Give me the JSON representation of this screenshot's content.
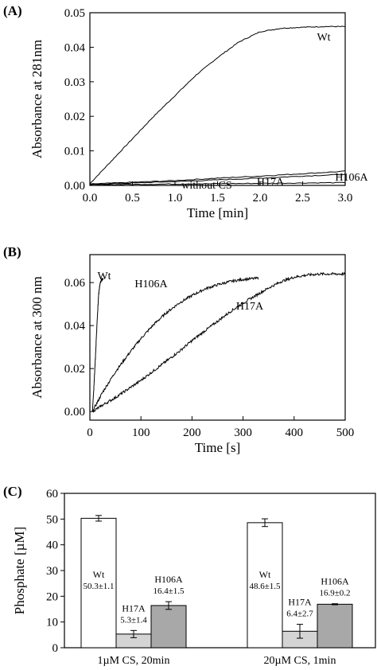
{
  "chart_data": [
    {
      "panel": "(A)",
      "type": "line",
      "xlabel": "Time [min]",
      "ylabel": "Absorbance at 281nm",
      "xlim": [
        0,
        3
      ],
      "ylim": [
        0,
        0.05
      ],
      "xticks": [
        0.0,
        0.5,
        1.0,
        1.5,
        2.0,
        2.5,
        3.0
      ],
      "xtick_labels": [
        "0.0",
        "0.5",
        "1.0",
        "1.5",
        "2.0",
        "2.5",
        "3.0"
      ],
      "yticks": [
        0,
        0.01,
        0.02,
        0.03,
        0.04,
        0.05
      ],
      "ytick_labels": [
        "0.00",
        "0.01",
        "0.02",
        "0.03",
        "0.04",
        "0.05"
      ],
      "series": [
        {
          "name": "Wt",
          "x": [
            0,
            0.25,
            0.5,
            0.75,
            1.0,
            1.25,
            1.5,
            1.75,
            2.0,
            2.25,
            2.5,
            2.75,
            3.0
          ],
          "y": [
            0.0005,
            0.007,
            0.0135,
            0.02,
            0.026,
            0.032,
            0.037,
            0.0415,
            0.0445,
            0.0455,
            0.0458,
            0.046,
            0.046
          ]
        },
        {
          "name": "H106A",
          "x": [
            0,
            0.5,
            1.0,
            1.5,
            2.0,
            2.5,
            3.0
          ],
          "y": [
            0.0004,
            0.0009,
            0.0014,
            0.0021,
            0.0027,
            0.0034,
            0.0041
          ]
        },
        {
          "name": "H17A",
          "x": [
            0,
            0.5,
            1.0,
            1.5,
            2.0,
            2.5,
            3.0
          ],
          "y": [
            0.0003,
            0.0007,
            0.0011,
            0.0016,
            0.0021,
            0.0027,
            0.0032
          ]
        },
        {
          "name": "without CS",
          "x": [
            0,
            0.5,
            1.0,
            1.5,
            2.0,
            2.5,
            3.0
          ],
          "y": [
            0.0002,
            0.0003,
            0.0004,
            0.0005,
            0.0006,
            0.0007,
            0.0008
          ]
        }
      ]
    },
    {
      "panel": "(B)",
      "type": "line",
      "xlabel": "Time [s]",
      "ylabel": "Absorbance at 300 nm",
      "xlim": [
        0,
        500
      ],
      "ylim": [
        -0.004,
        0.073
      ],
      "xticks": [
        0,
        100,
        200,
        300,
        400,
        500
      ],
      "xtick_labels": [
        "0",
        "100",
        "200",
        "300",
        "400",
        "500"
      ],
      "yticks": [
        0,
        0.02,
        0.04,
        0.06
      ],
      "ytick_labels": [
        "0.00",
        "0.02",
        "0.04",
        "0.06"
      ],
      "series": [
        {
          "name": "Wt",
          "x": [
            5,
            8,
            11,
            14,
            17,
            20,
            23,
            26
          ],
          "y": [
            0.0,
            0.012,
            0.026,
            0.041,
            0.054,
            0.06,
            0.0615,
            0.0615
          ]
        },
        {
          "name": "H106A",
          "x": [
            5,
            25,
            50,
            75,
            100,
            125,
            150,
            175,
            200,
            225,
            250,
            275,
            300,
            330
          ],
          "y": [
            0.0,
            0.009,
            0.0185,
            0.0265,
            0.034,
            0.0405,
            0.046,
            0.0505,
            0.054,
            0.057,
            0.059,
            0.0605,
            0.0615,
            0.062
          ]
        },
        {
          "name": "H17A",
          "x": [
            5,
            25,
            50,
            75,
            100,
            125,
            150,
            175,
            200,
            225,
            250,
            275,
            300,
            325,
            350,
            375,
            400,
            425,
            450,
            475,
            500
          ],
          "y": [
            0.0,
            0.003,
            0.0065,
            0.0105,
            0.0145,
            0.019,
            0.0235,
            0.028,
            0.033,
            0.0375,
            0.042,
            0.0465,
            0.0505,
            0.054,
            0.0575,
            0.0605,
            0.0625,
            0.0635,
            0.064,
            0.064,
            0.064
          ]
        }
      ]
    },
    {
      "panel": "(C)",
      "type": "bar",
      "ylabel": "Phosphate [µM]",
      "ylim": [
        0,
        60
      ],
      "yticks": [
        0,
        10,
        20,
        30,
        40,
        50,
        60
      ],
      "ytick_labels": [
        "0",
        "10",
        "20",
        "30",
        "40",
        "50",
        "60"
      ],
      "categories": [
        "1µM CS, 20min",
        "20µM CS, 1min"
      ],
      "series": [
        {
          "name": "Wt",
          "values": [
            50.3,
            48.6
          ],
          "errors": [
            1.1,
            1.5
          ],
          "value_labels": [
            "50.3±1.1",
            "48.6±1.5"
          ],
          "color": "#ffffff"
        },
        {
          "name": "H17A",
          "values": [
            5.3,
            6.4
          ],
          "errors": [
            1.4,
            2.7
          ],
          "value_labels": [
            "5.3±1.4",
            "6.4±2.7"
          ],
          "color": "#d4d4d4"
        },
        {
          "name": "H106A",
          "values": [
            16.4,
            16.9
          ],
          "errors": [
            1.5,
            0.2
          ],
          "value_labels": [
            "16.4±1.5",
            "16.9±0.2"
          ],
          "color": "#a8a8a8"
        }
      ]
    }
  ]
}
